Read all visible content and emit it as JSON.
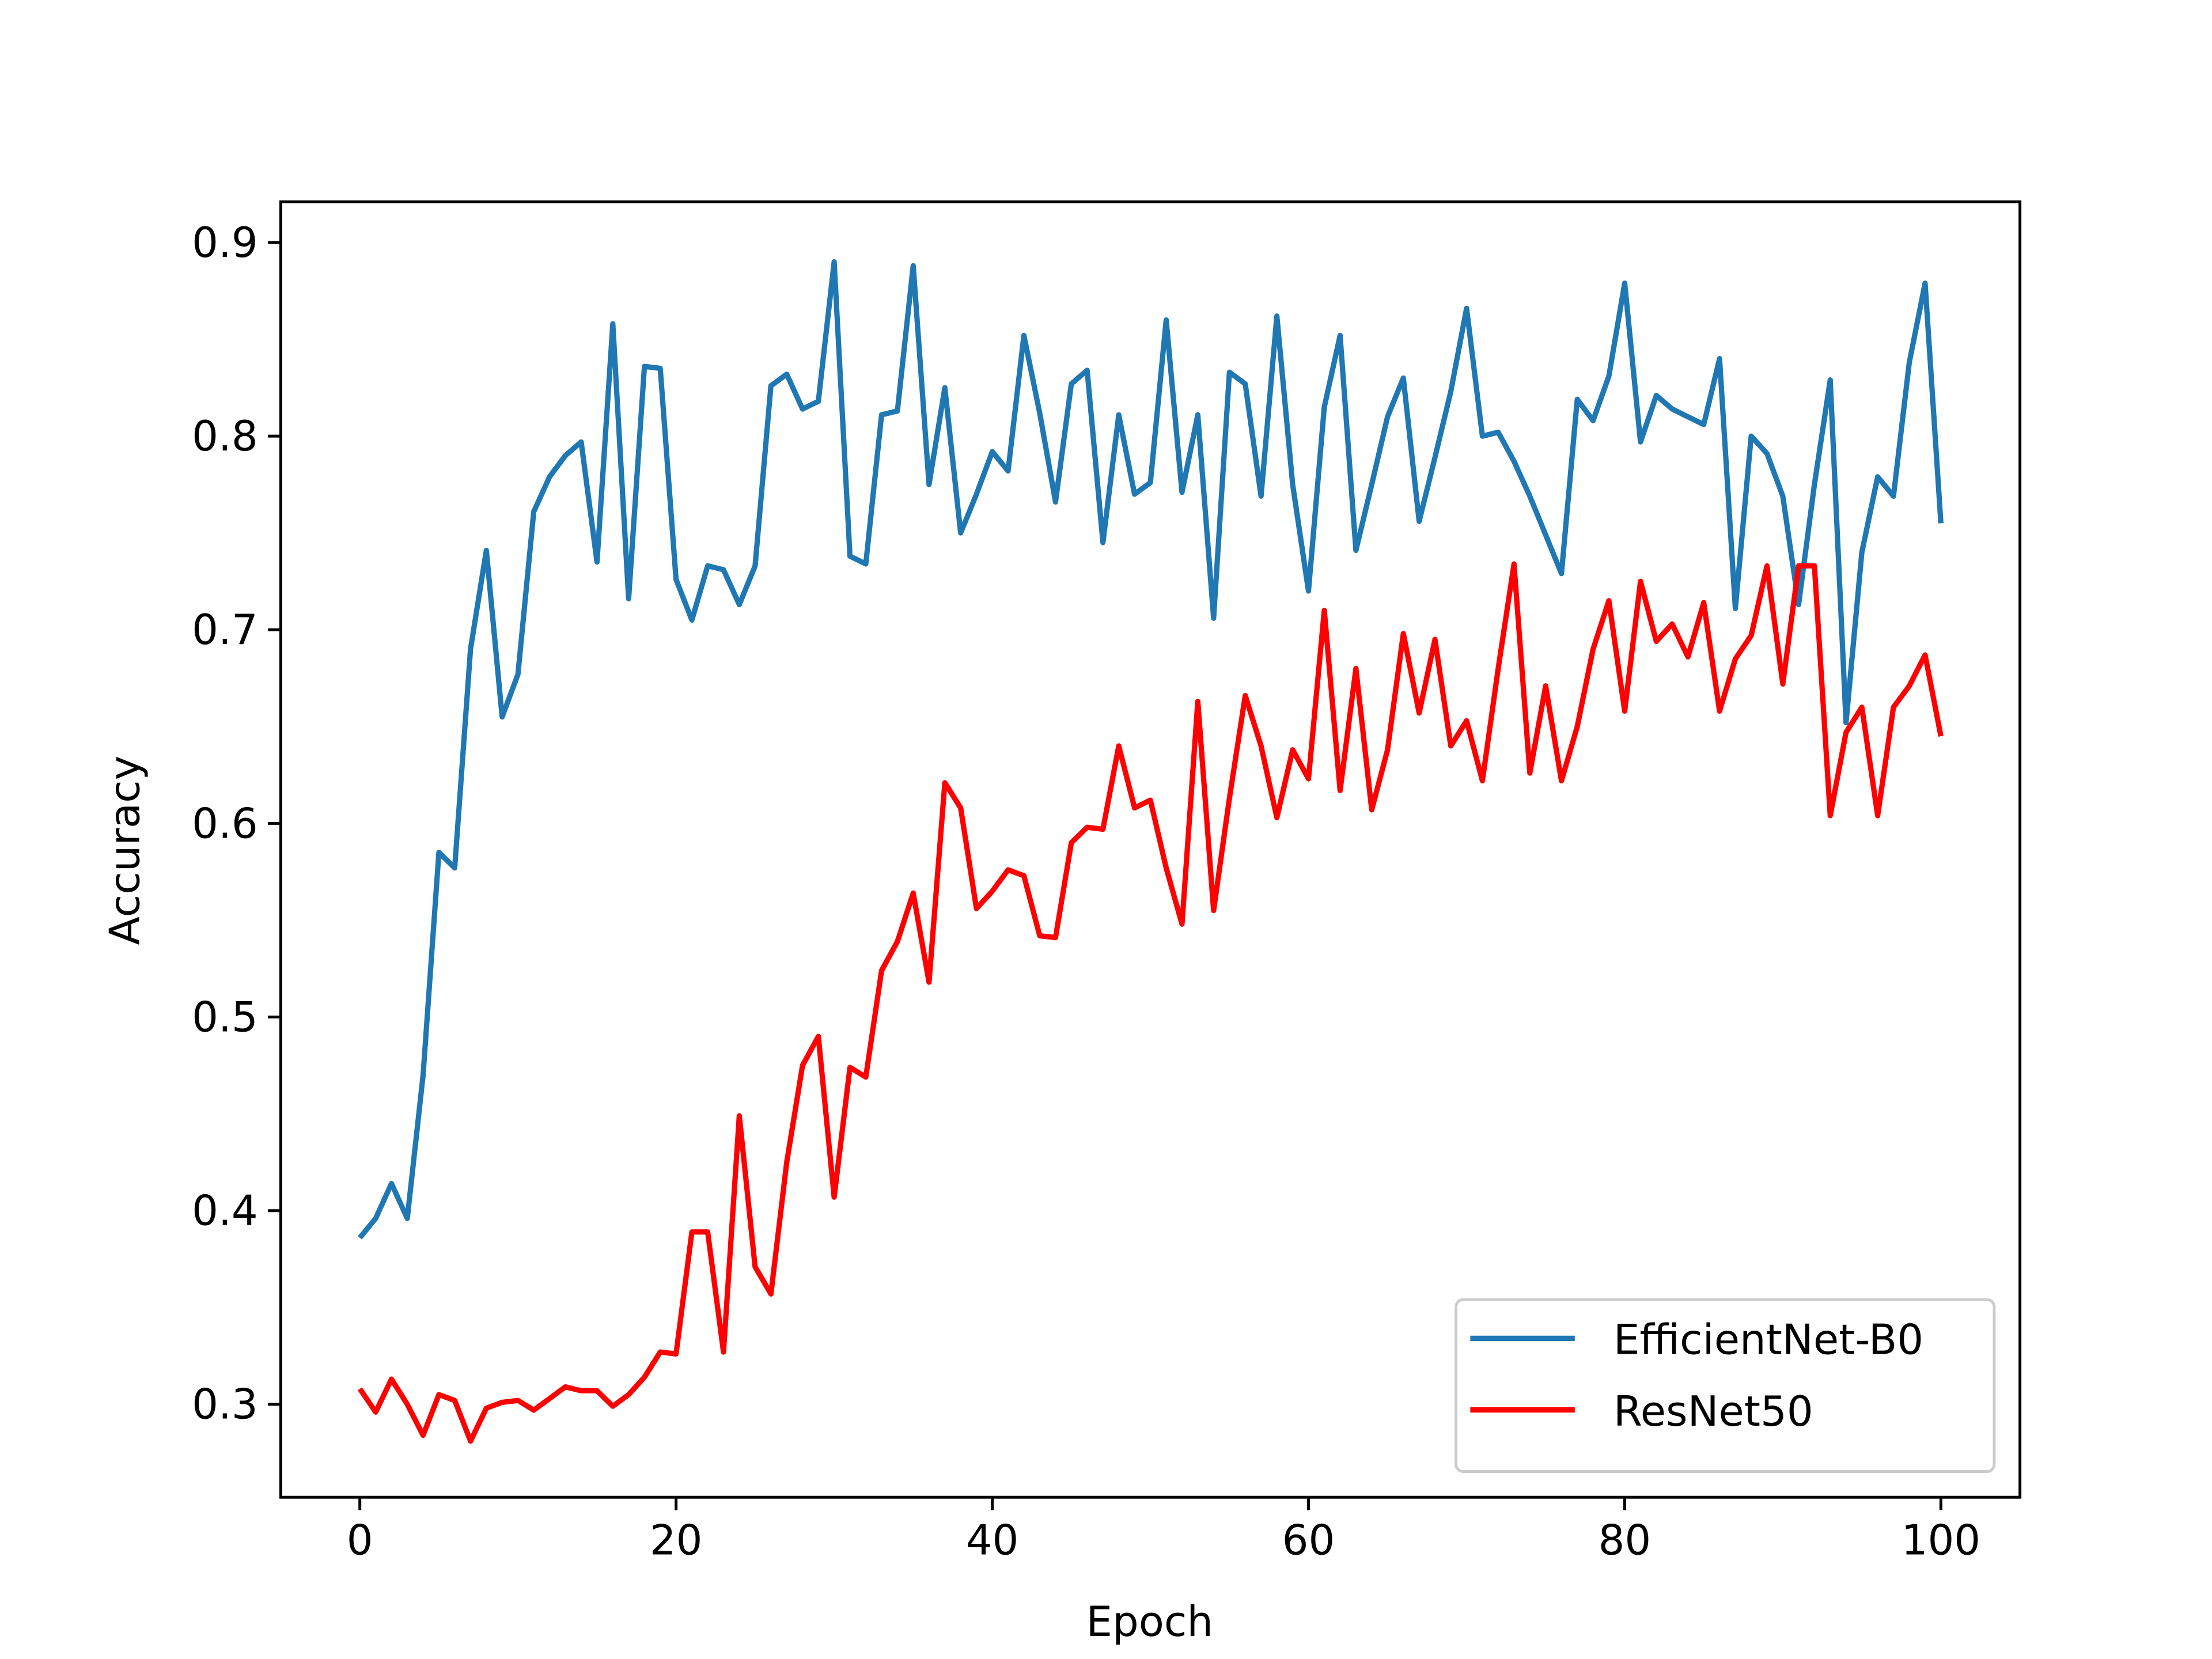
{
  "chart_data": {
    "type": "line",
    "x_label": "Epoch",
    "y_label": "Accuracy",
    "x": [
      0,
      1,
      2,
      3,
      4,
      5,
      6,
      7,
      8,
      9,
      10,
      11,
      12,
      13,
      14,
      15,
      16,
      17,
      18,
      19,
      20,
      21,
      22,
      23,
      24,
      25,
      26,
      27,
      28,
      29,
      30,
      31,
      32,
      33,
      34,
      35,
      36,
      37,
      38,
      39,
      40,
      41,
      42,
      43,
      44,
      45,
      46,
      47,
      48,
      49,
      50,
      51,
      52,
      53,
      54,
      55,
      56,
      57,
      58,
      59,
      60,
      61,
      62,
      63,
      64,
      65,
      66,
      67,
      68,
      69,
      70,
      71,
      72,
      73,
      74,
      75,
      76,
      77,
      78,
      79,
      80,
      81,
      82,
      83,
      84,
      85,
      86,
      87,
      88,
      89,
      90,
      91,
      92,
      93,
      94,
      95,
      96,
      97,
      98,
      99,
      100
    ],
    "series": [
      {
        "name": "EfficientNet-B0",
        "color": "#1f77b4",
        "values": [
          0.386,
          0.396,
          0.414,
          0.396,
          0.47,
          0.585,
          0.577,
          0.69,
          0.741,
          0.655,
          0.677,
          0.761,
          0.779,
          0.79,
          0.797,
          0.735,
          0.858,
          0.716,
          0.836,
          0.835,
          0.726,
          0.705,
          0.733,
          0.731,
          0.713,
          0.733,
          0.826,
          0.832,
          0.814,
          0.818,
          0.89,
          0.738,
          0.734,
          0.811,
          0.813,
          0.888,
          0.775,
          0.825,
          0.75,
          0.77,
          0.792,
          0.782,
          0.852,
          0.812,
          0.766,
          0.827,
          0.834,
          0.745,
          0.811,
          0.77,
          0.776,
          0.86,
          0.771,
          0.811,
          0.706,
          0.833,
          0.827,
          0.769,
          0.862,
          0.775,
          0.72,
          0.815,
          0.852,
          0.741,
          0.775,
          0.81,
          0.83,
          0.756,
          0.789,
          0.823,
          0.866,
          0.8,
          0.802,
          0.787,
          0.769,
          0.749,
          0.729,
          0.819,
          0.808,
          0.831,
          0.879,
          0.797,
          0.821,
          0.814,
          0.81,
          0.806,
          0.84,
          0.711,
          0.8,
          0.791,
          0.769,
          0.713,
          0.775,
          0.829,
          0.652,
          0.74,
          0.779,
          0.769,
          0.838,
          0.879,
          0.755
        ]
      },
      {
        "name": "ResNet50",
        "color": "#ff0000",
        "values": [
          0.308,
          0.296,
          0.313,
          0.3,
          0.284,
          0.305,
          0.302,
          0.281,
          0.298,
          0.301,
          0.302,
          0.297,
          0.303,
          0.309,
          0.307,
          0.307,
          0.299,
          0.305,
          0.314,
          0.327,
          0.326,
          0.389,
          0.389,
          0.327,
          0.449,
          0.371,
          0.357,
          0.425,
          0.475,
          0.49,
          0.407,
          0.474,
          0.469,
          0.524,
          0.539,
          0.564,
          0.518,
          0.621,
          0.608,
          0.556,
          0.565,
          0.576,
          0.573,
          0.542,
          0.541,
          0.59,
          0.598,
          0.597,
          0.64,
          0.608,
          0.612,
          0.577,
          0.548,
          0.663,
          0.555,
          0.613,
          0.666,
          0.64,
          0.603,
          0.638,
          0.623,
          0.71,
          0.617,
          0.68,
          0.607,
          0.638,
          0.698,
          0.657,
          0.695,
          0.64,
          0.653,
          0.622,
          0.68,
          0.734,
          0.626,
          0.671,
          0.622,
          0.65,
          0.69,
          0.715,
          0.658,
          0.725,
          0.694,
          0.703,
          0.686,
          0.714,
          0.658,
          0.685,
          0.697,
          0.733,
          0.672,
          0.733,
          0.733,
          0.604,
          0.647,
          0.66,
          0.604,
          0.66,
          0.671,
          0.687,
          0.645
        ]
      }
    ],
    "xlim": [
      -5,
      105
    ],
    "xticks": [
      0,
      20,
      40,
      60,
      80,
      100
    ],
    "ylim": [
      0.252,
      0.921
    ],
    "yticks": [
      0.3,
      0.4,
      0.5,
      0.6,
      0.7,
      0.8,
      0.9
    ],
    "grid": false,
    "legend": "lower right"
  }
}
